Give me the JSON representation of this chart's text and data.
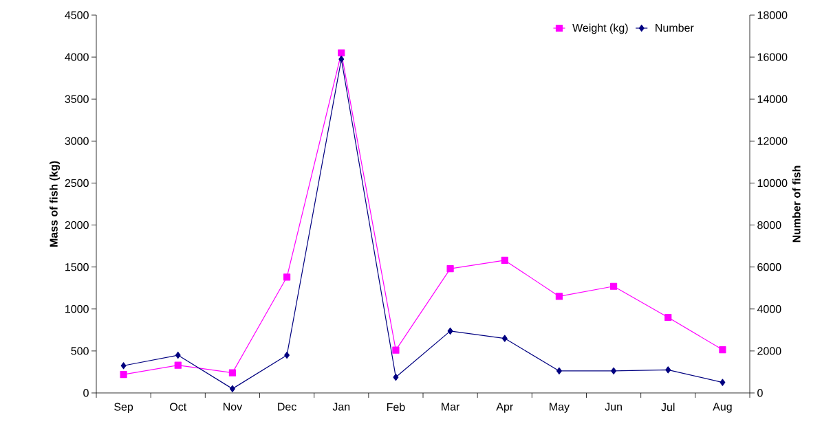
{
  "chart_data": {
    "type": "line",
    "categories": [
      "Sep",
      "Oct",
      "Nov",
      "Dec",
      "Jan",
      "Feb",
      "Mar",
      "Apr",
      "May",
      "Jun",
      "Jul",
      "Aug"
    ],
    "series": [
      {
        "name": "Weight (kg)",
        "color": "#ff00ff",
        "marker": "square",
        "values": [
          220,
          330,
          240,
          1380,
          4050,
          510,
          1480,
          1580,
          1150,
          1270,
          900,
          515
        ]
      },
      {
        "name": "Number",
        "color": "#000080",
        "marker": "diamond",
        "axis": "y2",
        "values": [
          1300,
          1800,
          200,
          1800,
          15900,
          750,
          2950,
          2600,
          1050,
          1050,
          1100,
          500
        ]
      }
    ],
    "ylabel": "Mass of fish (kg)",
    "y2label": "Number of fish",
    "ylim": [
      0,
      4500
    ],
    "yticks": [
      0,
      500,
      1000,
      1500,
      2000,
      2500,
      3000,
      3500,
      4000,
      4500
    ],
    "y2lim": [
      0,
      18000
    ],
    "y2ticks": [
      0,
      2000,
      4000,
      6000,
      8000,
      10000,
      12000,
      14000,
      16000,
      18000
    ],
    "legend": "top right"
  }
}
